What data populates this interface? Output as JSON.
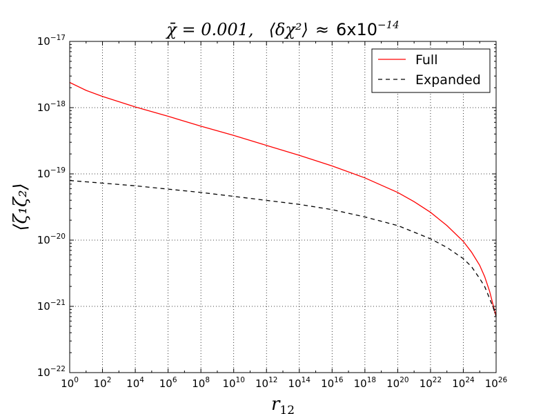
{
  "chart_data": {
    "type": "line",
    "title": {
      "left": "χ̄ = 0.001,",
      "middle_math": "⟨δχ²⟩",
      "approx": "≈",
      "right": "6x10",
      "right_exp": "−14"
    },
    "xlabel": {
      "base": "r",
      "sub": "12"
    },
    "ylabel": "⟨ζ₁ζ₂⟩",
    "xscale": "log",
    "yscale": "log",
    "xlim_exp": [
      0,
      26
    ],
    "ylim_exp": [
      -22,
      -17
    ],
    "x_ticks": [
      {
        "base": "10",
        "exp": "0"
      },
      {
        "base": "10",
        "exp": "2"
      },
      {
        "base": "10",
        "exp": "4"
      },
      {
        "base": "10",
        "exp": "6"
      },
      {
        "base": "10",
        "exp": "8"
      },
      {
        "base": "10",
        "exp": "10"
      },
      {
        "base": "10",
        "exp": "12"
      },
      {
        "base": "10",
        "exp": "14"
      },
      {
        "base": "10",
        "exp": "16"
      },
      {
        "base": "10",
        "exp": "18"
      },
      {
        "base": "10",
        "exp": "20"
      },
      {
        "base": "10",
        "exp": "22"
      },
      {
        "base": "10",
        "exp": "24"
      },
      {
        "base": "10",
        "exp": "26"
      }
    ],
    "y_ticks": [
      {
        "base": "10",
        "exp": "-17"
      },
      {
        "base": "10",
        "exp": "-18"
      },
      {
        "base": "10",
        "exp": "-19"
      },
      {
        "base": "10",
        "exp": "-20"
      },
      {
        "base": "10",
        "exp": "-21"
      },
      {
        "base": "10",
        "exp": "-22"
      }
    ],
    "grid": true,
    "legend_position": "top-right",
    "series": [
      {
        "name": "Full",
        "color": "#ff0000",
        "dash": "solid",
        "x_exp": [
          0,
          1,
          2,
          3,
          4,
          6,
          8,
          10,
          12,
          14,
          16,
          18,
          20,
          21,
          22,
          23,
          24,
          24.5,
          25,
          25.3,
          25.6,
          25.8,
          26
        ],
        "y_exp": [
          -17.62,
          -17.74,
          -17.83,
          -17.91,
          -17.99,
          -18.13,
          -18.28,
          -18.42,
          -18.57,
          -18.72,
          -18.88,
          -19.06,
          -19.28,
          -19.42,
          -19.58,
          -19.78,
          -20.02,
          -20.18,
          -20.38,
          -20.55,
          -20.77,
          -20.96,
          -21.15
        ]
      },
      {
        "name": "Expanded",
        "color": "#000000",
        "dash": "dashed",
        "x_exp": [
          0,
          2,
          4,
          6,
          8,
          10,
          12,
          14,
          16,
          18,
          20,
          22,
          23,
          24,
          24.5,
          25,
          25.3,
          25.6,
          25.8,
          26
        ],
        "y_exp": [
          -19.1,
          -19.14,
          -19.18,
          -19.23,
          -19.28,
          -19.34,
          -19.4,
          -19.46,
          -19.54,
          -19.65,
          -19.78,
          -19.98,
          -20.11,
          -20.28,
          -20.4,
          -20.58,
          -20.7,
          -20.88,
          -21.0,
          -21.15
        ]
      }
    ]
  }
}
